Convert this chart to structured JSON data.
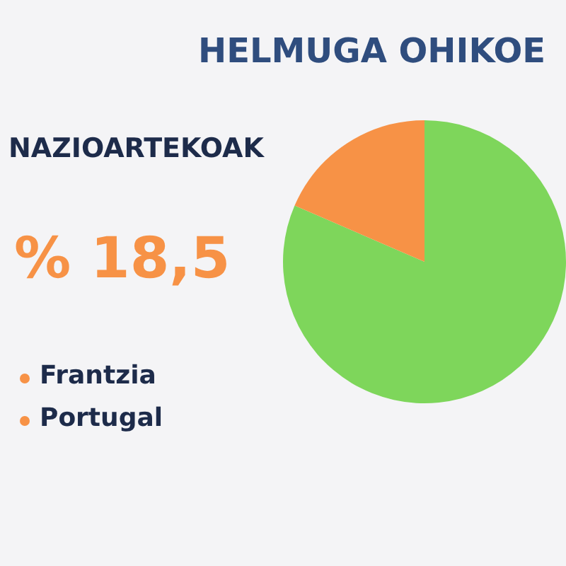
{
  "chart_data": {
    "type": "pie",
    "title": "HELMUGA OHIKOE",
    "categories": [
      null,
      "NAZIOARTEKOAK"
    ],
    "values": [
      81.5,
      18.5
    ],
    "colors": [
      "#7ed65b",
      "#f79246"
    ],
    "annotations": [
      "% 18,5",
      "Frantzia",
      "Portugal"
    ],
    "legend": false
  }
}
